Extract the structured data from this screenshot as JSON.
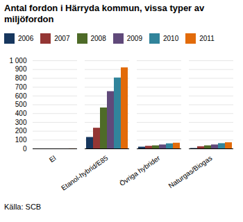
{
  "chart_data": {
    "type": "bar",
    "title": "Antal fordon i Härryda kommun, vissa typer av\nmiljöfordon",
    "categories": [
      "El",
      "Etanol-hybrid/E85",
      "Övriga hybrider",
      "Naturgas/Biogas"
    ],
    "series": [
      {
        "name": "2006",
        "color": "#17375e",
        "values": [
          0,
          130,
          20,
          5
        ]
      },
      {
        "name": "2007",
        "color": "#943634",
        "values": [
          0,
          235,
          30,
          25
        ]
      },
      {
        "name": "2008",
        "color": "#4e6b28",
        "values": [
          0,
          465,
          35,
          35
        ]
      },
      {
        "name": "2009",
        "color": "#60497a",
        "values": [
          0,
          650,
          45,
          45
        ]
      },
      {
        "name": "2010",
        "color": "#31849b",
        "values": [
          0,
          805,
          58,
          60
        ]
      },
      {
        "name": "2011",
        "color": "#e26b0a",
        "values": [
          1,
          920,
          65,
          70
        ]
      }
    ],
    "ylim": [
      0,
      1000
    ],
    "yticks": [
      0,
      100,
      200,
      300,
      400,
      500,
      600,
      700,
      800,
      900,
      {
        "value": 1000,
        "label": "1 000"
      }
    ],
    "grid": true,
    "legend": "top",
    "annotations": [
      "Källa: SCB"
    ]
  }
}
